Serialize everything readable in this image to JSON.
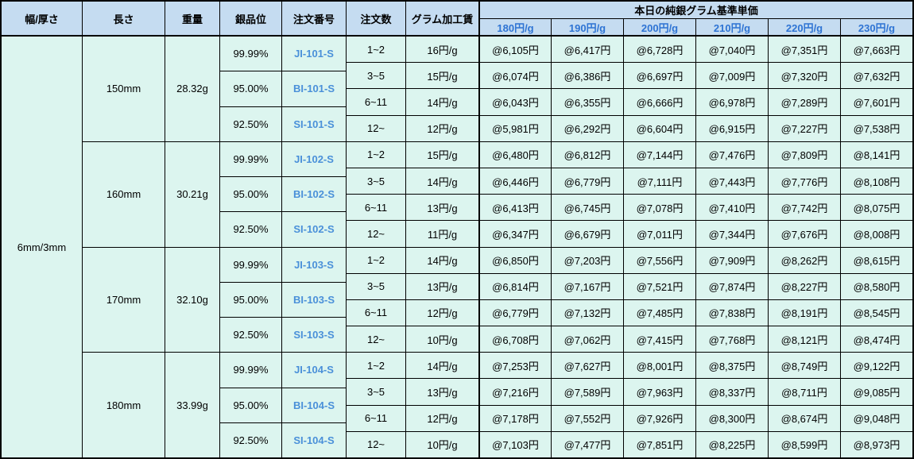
{
  "header": {
    "width_thickness": "幅/厚さ",
    "length": "長さ",
    "weight": "重量",
    "purity": "銀品位",
    "order_no": "注文番号",
    "order_qty": "注文数",
    "fee": "グラム加工賃",
    "price_group_title": "本日の純銀グラム基準単価",
    "price_columns": [
      "180円/g",
      "190円/g",
      "200円/g",
      "210円/g",
      "220円/g",
      "230円/g"
    ]
  },
  "width_thickness": "6mm/3mm",
  "groups": [
    {
      "length": "150mm",
      "weight": "28.32g",
      "purities": [
        {
          "purity": "99.99%",
          "order_no": "JI-101-S"
        },
        {
          "purity": "95.00%",
          "order_no": "BI-101-S"
        },
        {
          "purity": "92.50%",
          "order_no": "SI-101-S"
        }
      ],
      "rows": [
        {
          "qty": "1~2",
          "fee": "16円/g",
          "prices": [
            "@6,105円",
            "@6,417円",
            "@6,728円",
            "@7,040円",
            "@7,351円",
            "@7,663円"
          ]
        },
        {
          "qty": "3~5",
          "fee": "15円/g",
          "prices": [
            "@6,074円",
            "@6,386円",
            "@6,697円",
            "@7,009円",
            "@7,320円",
            "@7,632円"
          ]
        },
        {
          "qty": "6~11",
          "fee": "14円/g",
          "prices": [
            "@6,043円",
            "@6,355円",
            "@6,666円",
            "@6,978円",
            "@7,289円",
            "@7,601円"
          ]
        },
        {
          "qty": "12~",
          "fee": "12円/g",
          "prices": [
            "@5,981円",
            "@6,292円",
            "@6,604円",
            "@6,915円",
            "@7,227円",
            "@7,538円"
          ]
        }
      ]
    },
    {
      "length": "160mm",
      "weight": "30.21g",
      "purities": [
        {
          "purity": "99.99%",
          "order_no": "JI-102-S"
        },
        {
          "purity": "95.00%",
          "order_no": "BI-102-S"
        },
        {
          "purity": "92.50%",
          "order_no": "SI-102-S"
        }
      ],
      "rows": [
        {
          "qty": "1~2",
          "fee": "15円/g",
          "prices": [
            "@6,480円",
            "@6,812円",
            "@7,144円",
            "@7,476円",
            "@7,809円",
            "@8,141円"
          ]
        },
        {
          "qty": "3~5",
          "fee": "14円/g",
          "prices": [
            "@6,446円",
            "@6,779円",
            "@7,111円",
            "@7,443円",
            "@7,776円",
            "@8,108円"
          ]
        },
        {
          "qty": "6~11",
          "fee": "13円/g",
          "prices": [
            "@6,413円",
            "@6,745円",
            "@7,078円",
            "@7,410円",
            "@7,742円",
            "@8,075円"
          ]
        },
        {
          "qty": "12~",
          "fee": "11円/g",
          "prices": [
            "@6,347円",
            "@6,679円",
            "@7,011円",
            "@7,344円",
            "@7,676円",
            "@8,008円"
          ]
        }
      ]
    },
    {
      "length": "170mm",
      "weight": "32.10g",
      "purities": [
        {
          "purity": "99.99%",
          "order_no": "JI-103-S"
        },
        {
          "purity": "95.00%",
          "order_no": "BI-103-S"
        },
        {
          "purity": "92.50%",
          "order_no": "SI-103-S"
        }
      ],
      "rows": [
        {
          "qty": "1~2",
          "fee": "14円/g",
          "prices": [
            "@6,850円",
            "@7,203円",
            "@7,556円",
            "@7,909円",
            "@8,262円",
            "@8,615円"
          ]
        },
        {
          "qty": "3~5",
          "fee": "13円/g",
          "prices": [
            "@6,814円",
            "@7,167円",
            "@7,521円",
            "@7,874円",
            "@8,227円",
            "@8,580円"
          ]
        },
        {
          "qty": "6~11",
          "fee": "12円/g",
          "prices": [
            "@6,779円",
            "@7,132円",
            "@7,485円",
            "@7,838円",
            "@8,191円",
            "@8,545円"
          ]
        },
        {
          "qty": "12~",
          "fee": "10円/g",
          "prices": [
            "@6,708円",
            "@7,062円",
            "@7,415円",
            "@7,768円",
            "@8,121円",
            "@8,474円"
          ]
        }
      ]
    },
    {
      "length": "180mm",
      "weight": "33.99g",
      "purities": [
        {
          "purity": "99.99%",
          "order_no": "JI-104-S"
        },
        {
          "purity": "95.00%",
          "order_no": "BI-104-S"
        },
        {
          "purity": "92.50%",
          "order_no": "SI-104-S"
        }
      ],
      "rows": [
        {
          "qty": "1~2",
          "fee": "14円/g",
          "prices": [
            "@7,253円",
            "@7,627円",
            "@8,001円",
            "@8,375円",
            "@8,749円",
            "@9,122円"
          ]
        },
        {
          "qty": "3~5",
          "fee": "13円/g",
          "prices": [
            "@7,216円",
            "@7,589円",
            "@7,963円",
            "@8,337円",
            "@8,711円",
            "@9,085円"
          ]
        },
        {
          "qty": "6~11",
          "fee": "12円/g",
          "prices": [
            "@7,178円",
            "@7,552円",
            "@7,926円",
            "@8,300円",
            "@8,674円",
            "@9,048円"
          ]
        },
        {
          "qty": "12~",
          "fee": "10円/g",
          "prices": [
            "@7,103円",
            "@7,477円",
            "@7,851円",
            "@8,225円",
            "@8,599円",
            "@8,973円"
          ]
        }
      ]
    }
  ],
  "colors": {
    "header_bg": "#c5dcf1",
    "body_bg": "#dcf5ef",
    "frame": "#000000",
    "price_header_text": "#2e74d4",
    "order_link_text": "#4a90d9"
  }
}
